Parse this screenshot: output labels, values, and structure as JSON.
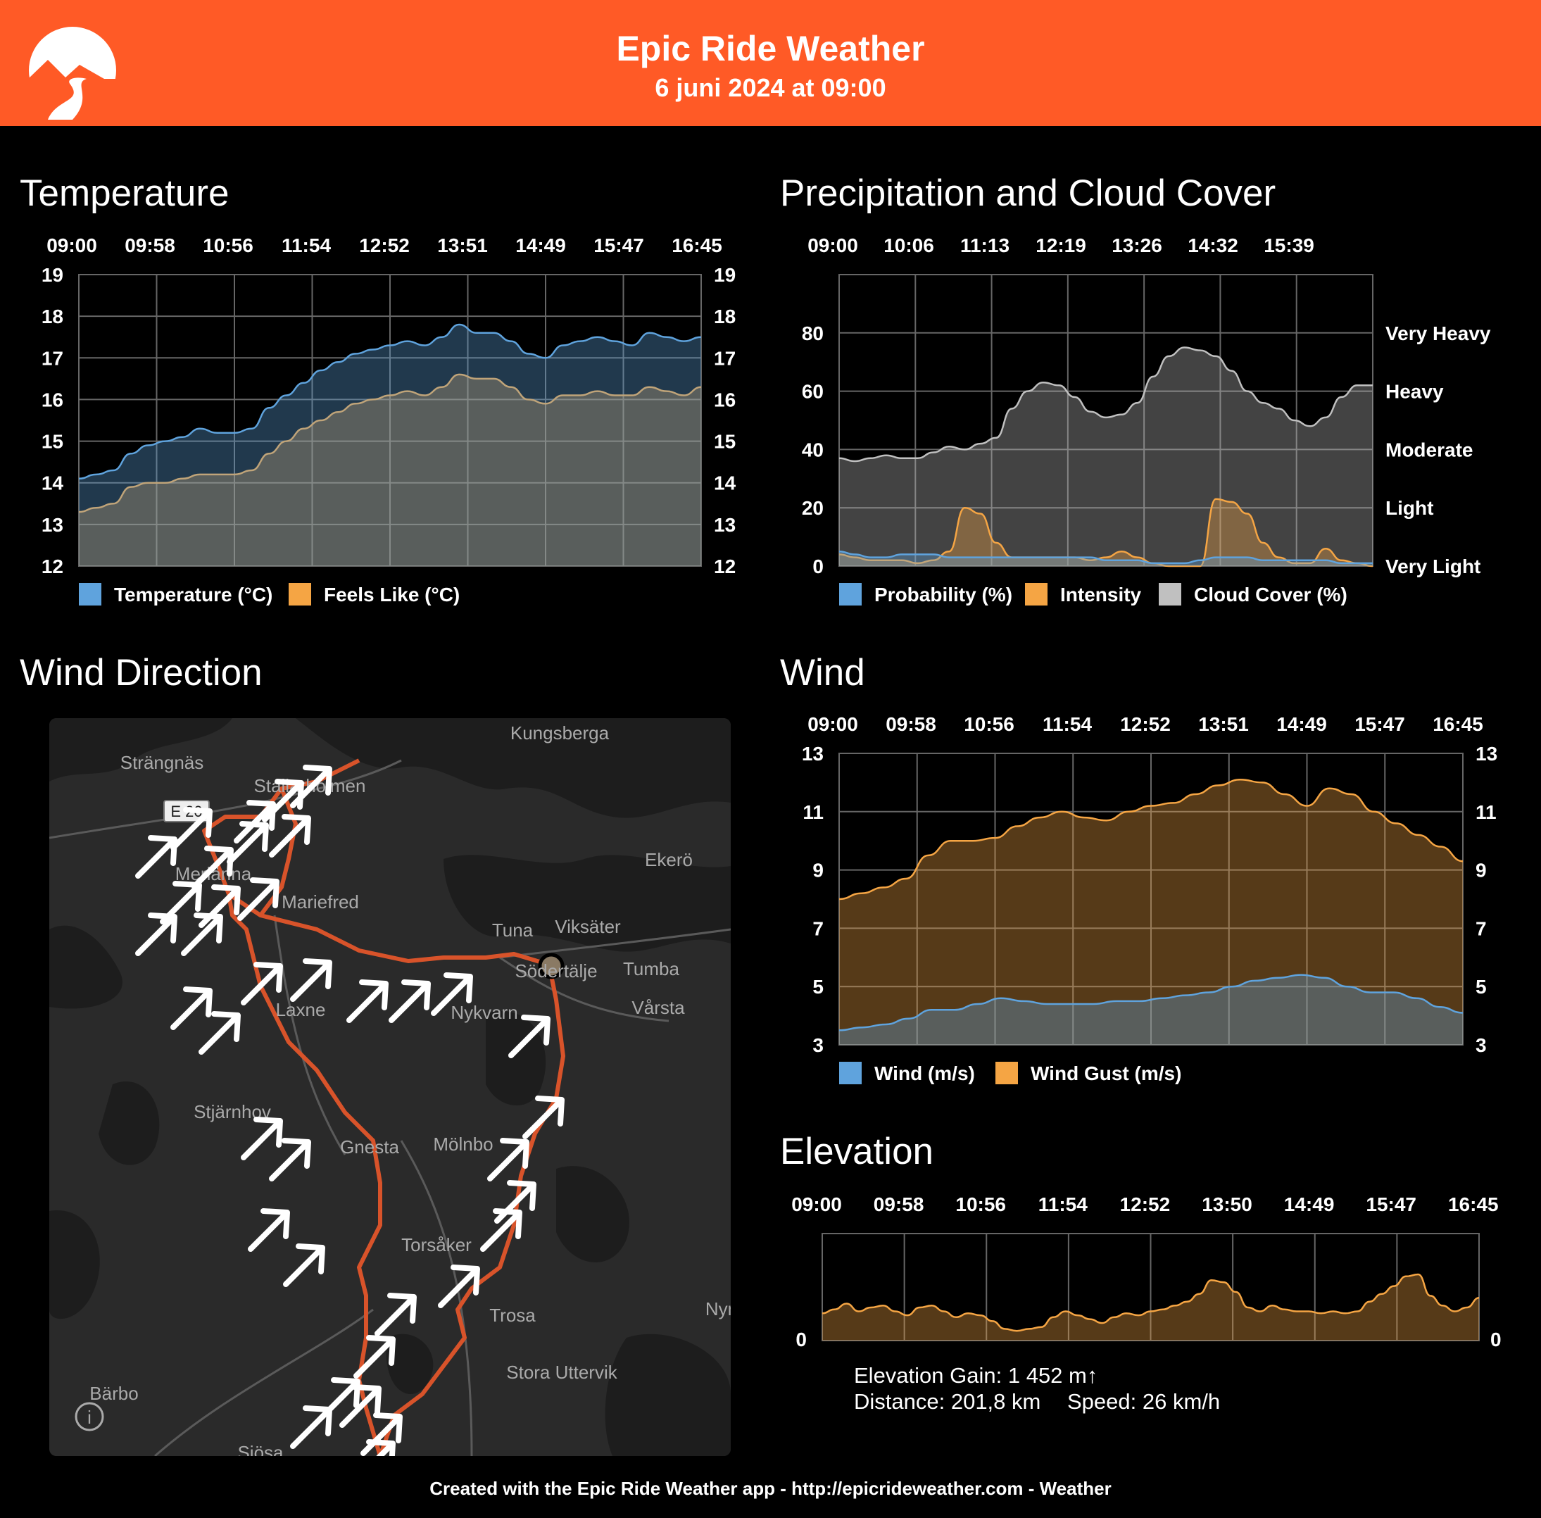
{
  "header": {
    "title": "Epic Ride Weather",
    "date": "6 juni 2024 at 09:00",
    "bg_color": "#ff5a26"
  },
  "panels": {
    "temperature": "Temperature",
    "precipitation": "Precipitation and Cloud Cover",
    "wind_direction": "Wind Direction",
    "wind": "Wind",
    "elevation": "Elevation"
  },
  "chart_data": [
    {
      "id": "temperature",
      "type": "area",
      "title": "Temperature",
      "x_ticks": [
        "09:00",
        "09:58",
        "10:56",
        "11:54",
        "12:52",
        "13:51",
        "14:49",
        "15:47",
        "16:45"
      ],
      "ylim": [
        12,
        19
      ],
      "y_ticks": [
        12,
        13,
        14,
        15,
        16,
        17,
        18,
        19
      ],
      "grid": true,
      "legend_position": "bottom",
      "series": [
        {
          "name": "Temperature (°C)",
          "color": "#5fa3dd",
          "values": [
            14.1,
            14.2,
            14.3,
            14.7,
            14.9,
            15.0,
            15.1,
            15.3,
            15.2,
            15.2,
            15.3,
            15.8,
            16.1,
            16.4,
            16.7,
            16.9,
            17.1,
            17.2,
            17.3,
            17.4,
            17.3,
            17.5,
            17.8,
            17.6,
            17.6,
            17.4,
            17.1,
            17.0,
            17.3,
            17.4,
            17.5,
            17.4,
            17.3,
            17.6,
            17.5,
            17.4,
            17.5
          ]
        },
        {
          "name": "Feels Like (°C)",
          "color": "#f5a544",
          "values": [
            13.3,
            13.4,
            13.5,
            13.9,
            14.0,
            14.0,
            14.1,
            14.2,
            14.2,
            14.2,
            14.3,
            14.7,
            15.0,
            15.3,
            15.5,
            15.7,
            15.9,
            16.0,
            16.1,
            16.2,
            16.1,
            16.3,
            16.6,
            16.5,
            16.5,
            16.3,
            16.0,
            15.9,
            16.1,
            16.1,
            16.2,
            16.1,
            16.1,
            16.3,
            16.2,
            16.1,
            16.3
          ]
        }
      ]
    },
    {
      "id": "precipitation",
      "type": "area",
      "title": "Precipitation and Cloud Cover",
      "x_ticks": [
        "09:00",
        "10:06",
        "11:13",
        "12:19",
        "13:26",
        "14:32",
        "15:39"
      ],
      "ylim": [
        0,
        100
      ],
      "y_ticks": [
        0,
        20,
        40,
        60,
        80
      ],
      "right_labels": [
        "Very Light",
        "Light",
        "Moderate",
        "Heavy",
        "Very Heavy"
      ],
      "grid": true,
      "legend_position": "bottom",
      "series": [
        {
          "name": "Probability (%)",
          "color": "#5fa3dd",
          "values": [
            5,
            4,
            3,
            3,
            4,
            4,
            4,
            3,
            3,
            3,
            3,
            3,
            3,
            3,
            3,
            3,
            3,
            2,
            2,
            2,
            1,
            1,
            1,
            2,
            3,
            3,
            3,
            2,
            2,
            2,
            2,
            2,
            1,
            1,
            1
          ]
        },
        {
          "name": "Intensity",
          "color": "#f5a544",
          "values": [
            4,
            3,
            2,
            2,
            2,
            1,
            2,
            5,
            20,
            18,
            8,
            3,
            3,
            3,
            3,
            3,
            2,
            3,
            5,
            3,
            1,
            0,
            0,
            0,
            23,
            22,
            18,
            8,
            3,
            1,
            1,
            6,
            2,
            1,
            0
          ]
        },
        {
          "name": "Cloud Cover (%)",
          "color": "#c0c0c0",
          "values": [
            37,
            36,
            37,
            38,
            37,
            37,
            39,
            41,
            40,
            42,
            44,
            54,
            60,
            63,
            62,
            58,
            53,
            51,
            52,
            56,
            65,
            72,
            75,
            74,
            72,
            67,
            60,
            56,
            54,
            50,
            48,
            51,
            58,
            62,
            62
          ]
        }
      ]
    },
    {
      "id": "wind",
      "type": "area",
      "title": "Wind",
      "x_ticks": [
        "09:00",
        "09:58",
        "10:56",
        "11:54",
        "12:52",
        "13:51",
        "14:49",
        "15:47",
        "16:45"
      ],
      "ylim": [
        3,
        13
      ],
      "y_ticks": [
        3,
        5,
        7,
        9,
        11,
        13
      ],
      "grid": true,
      "legend_position": "bottom",
      "series": [
        {
          "name": "Wind (m/s)",
          "color": "#5fa3dd",
          "values": [
            3.5,
            3.6,
            3.7,
            3.9,
            4.2,
            4.2,
            4.4,
            4.6,
            4.5,
            4.4,
            4.4,
            4.4,
            4.5,
            4.5,
            4.6,
            4.7,
            4.8,
            5.0,
            5.2,
            5.3,
            5.4,
            5.3,
            5.0,
            4.8,
            4.8,
            4.6,
            4.3,
            4.1
          ]
        },
        {
          "name": "Wind Gust (m/s)",
          "color": "#f5a544",
          "values": [
            8.0,
            8.2,
            8.4,
            8.7,
            9.5,
            10.0,
            10.0,
            10.1,
            10.5,
            10.8,
            11.0,
            10.8,
            10.7,
            11.0,
            11.2,
            11.3,
            11.6,
            11.9,
            12.1,
            12.0,
            11.6,
            11.2,
            11.8,
            11.6,
            11.0,
            10.6,
            10.2,
            9.8,
            9.3
          ]
        }
      ]
    },
    {
      "id": "elevation",
      "type": "area",
      "title": "Elevation",
      "x_ticks": [
        "09:00",
        "09:58",
        "10:56",
        "11:54",
        "12:52",
        "13:50",
        "14:49",
        "15:47",
        "16:45"
      ],
      "y_ticks": [
        0
      ],
      "grid": true,
      "series": [
        {
          "name": "Elevation",
          "color": "#f5a544",
          "values": [
            28,
            32,
            38,
            30,
            34,
            36,
            30,
            26,
            34,
            36,
            30,
            24,
            28,
            26,
            20,
            12,
            10,
            12,
            14,
            24,
            30,
            26,
            22,
            18,
            24,
            28,
            26,
            30,
            32,
            36,
            40,
            48,
            62,
            60,
            50,
            34,
            30,
            36,
            32,
            30,
            30,
            28,
            30,
            28,
            30,
            40,
            48,
            56,
            66,
            68,
            46,
            36,
            30,
            34,
            44
          ]
        }
      ]
    }
  ],
  "legends": {
    "temperature": [
      "Temperature (°C)",
      "Feels Like (°C)"
    ],
    "precipitation": [
      "Probability (%)",
      "Intensity",
      "Cloud Cover (%)"
    ],
    "wind": [
      "Wind (m/s)",
      "Wind Gust (m/s)"
    ]
  },
  "map": {
    "places": [
      "Kungsberga",
      "Strängnäs",
      "Stallarholmen",
      "E 20",
      "Ekerö",
      "Merlänna",
      "Mariefred",
      "Tuna",
      "Viksäter",
      "Södertälje",
      "Tumba",
      "Laxne",
      "Nykvarn",
      "Vårsta",
      "Stjärnhov",
      "Gnesta",
      "Mölnbo",
      "Torsåker",
      "Trosa",
      "Stora Uttervik",
      "Bärbo",
      "Nyn",
      "Sjösa"
    ],
    "route_color": "#d8532a",
    "info_label": "i"
  },
  "elevation_stats": {
    "gain": "Elevation Gain: 1 452 m↑",
    "distance": "Distance: 201,8 km",
    "speed": "Speed: 26 km/h"
  },
  "footer": "Created with the Epic Ride Weather app - http://epicrideweather.com -  Weather"
}
